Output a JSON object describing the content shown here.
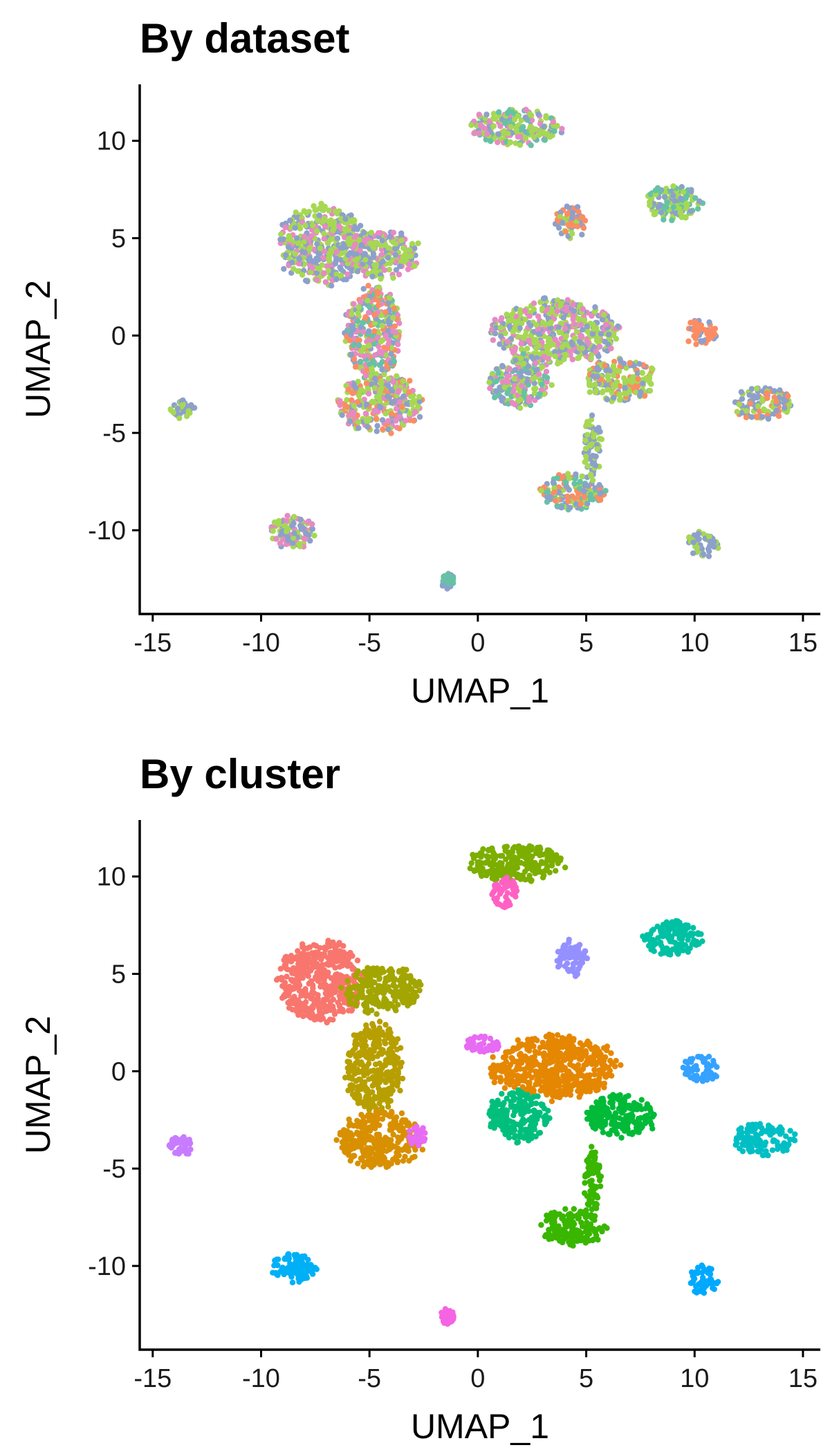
{
  "chart_data": [
    {
      "type": "scatter",
      "title": "By dataset",
      "xlabel": "UMAP_1",
      "ylabel": "UMAP_2",
      "xlim": [
        -15.6,
        15.8
      ],
      "ylim": [
        -14.3,
        12.9
      ],
      "x_ticks": [
        "-15",
        "-10",
        "-5",
        "0",
        "5",
        "10",
        "15"
      ],
      "y_ticks": [
        "10",
        "5",
        "0",
        "-5",
        "-10"
      ],
      "grid": false,
      "legend": "none",
      "color_by": "dataset",
      "palette": [
        "#a6d854",
        "#8da0cb",
        "#e78ac3",
        "#fc8d62",
        "#66c2a5"
      ],
      "dominant_colors": [
        "#a6d854",
        "#8da0cb"
      ],
      "clusters": [
        {
          "name": "c1",
          "cx": 1.8,
          "cy": 10.7,
          "rx": 2.2,
          "ry": 0.9,
          "colors": [
            "#a6d854",
            "#a6d854",
            "#a6d854",
            "#8da0cb",
            "#e78ac3",
            "#66c2a5"
          ]
        },
        {
          "name": "c2",
          "cx": 4.3,
          "cy": 5.8,
          "rx": 0.7,
          "ry": 0.9,
          "colors": [
            "#8da0cb",
            "#fc8d62",
            "#8da0cb",
            "#a6d854",
            "#fc8d62"
          ]
        },
        {
          "name": "c3",
          "cx": 9.0,
          "cy": 6.8,
          "rx": 1.3,
          "ry": 0.9,
          "colors": [
            "#a6d854",
            "#8da0cb",
            "#a6d854",
            "#66c2a5"
          ]
        },
        {
          "name": "c4",
          "cx": -7.2,
          "cy": 4.6,
          "rx": 2.0,
          "ry": 2.0,
          "colors": [
            "#a6d854",
            "#8da0cb",
            "#a6d854",
            "#8da0cb",
            "#e78ac3"
          ]
        },
        {
          "name": "c5",
          "cx": -4.5,
          "cy": 4.2,
          "rx": 1.8,
          "ry": 1.2,
          "colors": [
            "#a6d854",
            "#a6d854",
            "#8da0cb",
            "#e78ac3"
          ]
        },
        {
          "name": "c6",
          "cx": -4.8,
          "cy": 0.2,
          "rx": 1.3,
          "ry": 2.3,
          "colors": [
            "#a6d854",
            "#8da0cb",
            "#e78ac3",
            "#fc8d62",
            "#66c2a5"
          ]
        },
        {
          "name": "c7",
          "cx": -4.5,
          "cy": -3.5,
          "rx": 1.9,
          "ry": 1.5,
          "colors": [
            "#a6d854",
            "#a6d854",
            "#8da0cb",
            "#e78ac3",
            "#fc8d62"
          ]
        },
        {
          "name": "c8",
          "cx": 3.6,
          "cy": 0.2,
          "rx": 2.9,
          "ry": 1.6,
          "colors": [
            "#a6d854",
            "#a6d854",
            "#8da0cb",
            "#e78ac3"
          ]
        },
        {
          "name": "c9",
          "cx": 1.9,
          "cy": -2.3,
          "rx": 1.4,
          "ry": 1.3,
          "colors": [
            "#a6d854",
            "#8da0cb",
            "#66c2a5",
            "#e78ac3"
          ]
        },
        {
          "name": "c10",
          "cx": 6.6,
          "cy": -2.3,
          "rx": 1.6,
          "ry": 1.1,
          "colors": [
            "#a6d854",
            "#a6d854",
            "#8da0cb",
            "#fc8d62"
          ]
        },
        {
          "name": "c11",
          "cx": 4.4,
          "cy": -8.0,
          "rx": 1.5,
          "ry": 0.9,
          "colors": [
            "#8da0cb",
            "#a6d854",
            "#fc8d62",
            "#66c2a5"
          ]
        },
        {
          "name": "c12",
          "cx": 5.3,
          "cy": -5.6,
          "rx": 0.4,
          "ry": 1.6,
          "colors": [
            "#8da0cb",
            "#a6d854"
          ]
        },
        {
          "name": "c13",
          "cx": 10.3,
          "cy": 0.1,
          "rx": 0.8,
          "ry": 0.7,
          "colors": [
            "#fc8d62",
            "#8da0cb",
            "#fc8d62"
          ]
        },
        {
          "name": "c14",
          "cx": 13.2,
          "cy": -3.5,
          "rx": 1.4,
          "ry": 0.8,
          "colors": [
            "#8da0cb",
            "#fc8d62",
            "#8da0cb",
            "#a6d854"
          ]
        },
        {
          "name": "c15",
          "cx": 10.4,
          "cy": -10.7,
          "rx": 0.7,
          "ry": 0.7,
          "colors": [
            "#8da0cb",
            "#a6d854"
          ]
        },
        {
          "name": "c16",
          "cx": -8.5,
          "cy": -10.1,
          "rx": 1.1,
          "ry": 0.8,
          "colors": [
            "#8da0cb",
            "#a6d854",
            "#e78ac3"
          ]
        },
        {
          "name": "c17",
          "cx": -13.7,
          "cy": -3.8,
          "rx": 0.6,
          "ry": 0.5,
          "colors": [
            "#8da0cb",
            "#a6d854"
          ]
        },
        {
          "name": "c18",
          "cx": -1.4,
          "cy": -12.6,
          "rx": 0.3,
          "ry": 0.4,
          "colors": [
            "#8da0cb",
            "#66c2a5"
          ]
        }
      ]
    },
    {
      "type": "scatter",
      "title": "By cluster",
      "xlabel": "UMAP_1",
      "ylabel": "UMAP_2",
      "xlim": [
        -15.6,
        15.8
      ],
      "ylim": [
        -14.3,
        12.9
      ],
      "x_ticks": [
        "-15",
        "-10",
        "-5",
        "0",
        "5",
        "10",
        "15"
      ],
      "y_ticks": [
        "10",
        "5",
        "0",
        "-5",
        "-10"
      ],
      "grid": false,
      "legend": "none",
      "color_by": "cluster",
      "clusters": [
        {
          "name": "c1",
          "cx": 1.8,
          "cy": 10.7,
          "rx": 2.2,
          "ry": 0.9,
          "colors": [
            "#7cae00"
          ]
        },
        {
          "name": "c1b",
          "cx": 1.2,
          "cy": 9.2,
          "rx": 0.6,
          "ry": 0.8,
          "colors": [
            "#ff61c3"
          ]
        },
        {
          "name": "c2",
          "cx": 4.3,
          "cy": 5.8,
          "rx": 0.7,
          "ry": 0.9,
          "colors": [
            "#9590ff"
          ]
        },
        {
          "name": "c3",
          "cx": 9.0,
          "cy": 6.8,
          "rx": 1.3,
          "ry": 0.9,
          "colors": [
            "#00c1a3"
          ]
        },
        {
          "name": "c4",
          "cx": -7.2,
          "cy": 4.6,
          "rx": 2.0,
          "ry": 2.0,
          "colors": [
            "#f8766d"
          ]
        },
        {
          "name": "c5",
          "cx": -4.5,
          "cy": 4.2,
          "rx": 1.8,
          "ry": 1.2,
          "colors": [
            "#a3a500"
          ]
        },
        {
          "name": "c6",
          "cx": -4.8,
          "cy": 0.2,
          "rx": 1.3,
          "ry": 2.3,
          "colors": [
            "#b79f00"
          ]
        },
        {
          "name": "c7",
          "cx": -4.5,
          "cy": -3.5,
          "rx": 1.9,
          "ry": 1.5,
          "colors": [
            "#d89000"
          ]
        },
        {
          "name": "c8",
          "cx": 3.6,
          "cy": 0.2,
          "rx": 2.9,
          "ry": 1.6,
          "colors": [
            "#e58700"
          ]
        },
        {
          "name": "c9",
          "cx": 1.9,
          "cy": -2.3,
          "rx": 1.4,
          "ry": 1.3,
          "colors": [
            "#00bf7d"
          ]
        },
        {
          "name": "c10",
          "cx": 6.6,
          "cy": -2.3,
          "rx": 1.6,
          "ry": 1.1,
          "colors": [
            "#00ba38"
          ]
        },
        {
          "name": "c11",
          "cx": 4.4,
          "cy": -8.0,
          "rx": 1.5,
          "ry": 0.9,
          "colors": [
            "#39b600"
          ]
        },
        {
          "name": "c12",
          "cx": 5.3,
          "cy": -5.6,
          "rx": 0.4,
          "ry": 1.6,
          "colors": [
            "#39b600"
          ]
        },
        {
          "name": "c13",
          "cx": 10.3,
          "cy": 0.1,
          "rx": 0.8,
          "ry": 0.7,
          "colors": [
            "#35a2ff"
          ]
        },
        {
          "name": "c14",
          "cx": 13.2,
          "cy": -3.5,
          "rx": 1.4,
          "ry": 0.8,
          "colors": [
            "#00bfc4"
          ]
        },
        {
          "name": "c15",
          "cx": 10.4,
          "cy": -10.7,
          "rx": 0.7,
          "ry": 0.7,
          "colors": [
            "#00a9ff"
          ]
        },
        {
          "name": "c16",
          "cx": -8.5,
          "cy": -10.1,
          "rx": 1.1,
          "ry": 0.8,
          "colors": [
            "#00b0f6"
          ]
        },
        {
          "name": "c17",
          "cx": -13.7,
          "cy": -3.8,
          "rx": 0.6,
          "ry": 0.5,
          "colors": [
            "#c77cff"
          ]
        },
        {
          "name": "c18",
          "cx": -1.4,
          "cy": -12.6,
          "rx": 0.3,
          "ry": 0.4,
          "colors": [
            "#f564e3"
          ]
        },
        {
          "name": "c19",
          "cx": -2.8,
          "cy": -3.3,
          "rx": 0.4,
          "ry": 0.5,
          "colors": [
            "#e76bf3"
          ]
        },
        {
          "name": "c20",
          "cx": 0.3,
          "cy": 1.4,
          "rx": 1.0,
          "ry": 0.4,
          "colors": [
            "#e76bf3"
          ]
        }
      ]
    }
  ]
}
